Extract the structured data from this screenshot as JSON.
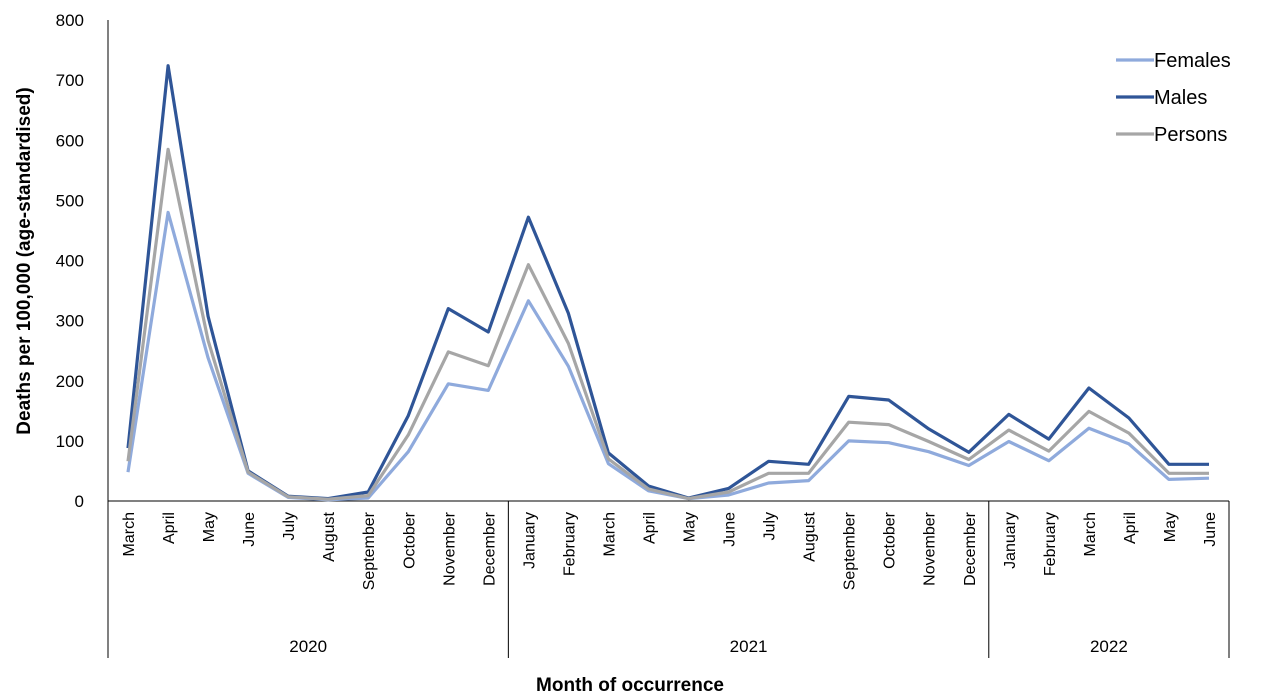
{
  "chart_data": {
    "type": "line",
    "title": "",
    "xlabel": "Month of occurrence",
    "ylabel": "Deaths per 100,000 (age-standardised)",
    "ylim": [
      0,
      800
    ],
    "yticks": [
      0,
      100,
      200,
      300,
      400,
      500,
      600,
      700,
      800
    ],
    "grid": false,
    "legend_position": "top-right",
    "categories": [
      "March",
      "April",
      "May",
      "June",
      "July",
      "August",
      "September",
      "October",
      "November",
      "December",
      "January",
      "February",
      "March",
      "April",
      "May",
      "June",
      "July",
      "August",
      "September",
      "October",
      "November",
      "December",
      "January",
      "February",
      "March",
      "April",
      "May",
      "June"
    ],
    "year_groups": [
      {
        "label": "2020",
        "count": 10
      },
      {
        "label": "2021",
        "count": 12
      },
      {
        "label": "2022",
        "count": 6
      }
    ],
    "series": [
      {
        "name": "Females",
        "color": "#8faadc",
        "values": [
          48,
          480,
          238,
          46,
          6,
          2,
          5,
          82,
          195,
          184,
          333,
          224,
          62,
          17,
          4,
          10,
          30,
          34,
          100,
          97,
          82,
          59,
          99,
          67,
          121,
          95,
          36,
          38
        ]
      },
      {
        "name": "Males",
        "color": "#2f5597",
        "values": [
          88,
          724,
          307,
          50,
          8,
          4,
          15,
          142,
          320,
          281,
          472,
          312,
          80,
          25,
          5,
          21,
          66,
          61,
          174,
          168,
          120,
          81,
          144,
          103,
          188,
          138,
          61,
          61
        ]
      },
      {
        "name": "Persons",
        "color": "#a6a6a6",
        "values": [
          66,
          585,
          267,
          48,
          7,
          3,
          9,
          110,
          248,
          225,
          393,
          262,
          70,
          20,
          4,
          15,
          46,
          46,
          131,
          127,
          99,
          69,
          118,
          83,
          149,
          113,
          46,
          46
        ]
      }
    ]
  }
}
